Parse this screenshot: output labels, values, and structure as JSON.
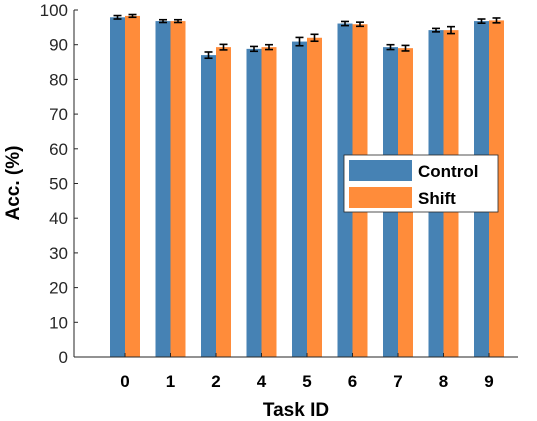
{
  "chart_data": {
    "type": "bar",
    "title": "",
    "xlabel": "Task ID",
    "ylabel": "Acc. (%)",
    "ylim": [
      0,
      100
    ],
    "yticks": [
      "0",
      "10",
      "20",
      "30",
      "40",
      "50",
      "60",
      "70",
      "80",
      "90",
      "100"
    ],
    "categories": [
      "0",
      "1",
      "2",
      "4",
      "5",
      "6",
      "7",
      "8",
      "9"
    ],
    "series": [
      {
        "name": "Control",
        "color": "#4682b4",
        "values": [
          97.9,
          96.8,
          87.0,
          88.8,
          90.9,
          96.1,
          89.3,
          94.2,
          96.8
        ],
        "errors": [
          0.5,
          0.4,
          0.9,
          0.7,
          1.2,
          0.6,
          0.7,
          0.5,
          0.6
        ]
      },
      {
        "name": "Shift",
        "color": "#ff8c3a",
        "values": [
          98.3,
          96.8,
          89.3,
          89.3,
          92.0,
          95.9,
          89.0,
          94.2,
          97.0
        ],
        "errors": [
          0.4,
          0.4,
          0.8,
          0.7,
          1.0,
          0.6,
          0.8,
          1.0,
          0.7
        ]
      }
    ],
    "legend_position": "right",
    "grid": false
  }
}
